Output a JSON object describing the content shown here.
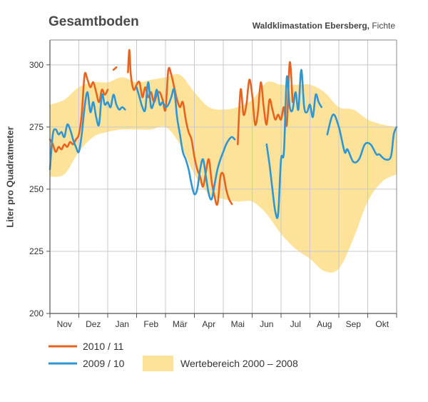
{
  "header": {
    "title": "Gesamtboden",
    "station_bold": "Waldklimastation Ebersberg,",
    "station_rest": " Fichte"
  },
  "chart_data": {
    "type": "line",
    "ylabel": "Liter pro Quadratmeter",
    "ylim": [
      200,
      310
    ],
    "yticks": [
      200,
      225,
      250,
      275,
      300
    ],
    "xlim": [
      0,
      12
    ],
    "months": [
      "Nov",
      "Dez",
      "Jan",
      "Feb",
      "Mär",
      "Apr",
      "Mai",
      "Jun",
      "Jul",
      "Aug",
      "Sep",
      "Okt"
    ],
    "grid": "vertical month dividers",
    "legend_placement": "bottom-left",
    "colors": {
      "series_2010": "#e8641e",
      "series_2009": "#2e96d3",
      "band": "#fde29a"
    },
    "band": {
      "name": "Wertebereich 2000 – 2008",
      "x": [
        0,
        0.5,
        1,
        1.5,
        2,
        2.5,
        3,
        3.5,
        4,
        4.5,
        5,
        5.5,
        6,
        6.5,
        7,
        7.5,
        8,
        8.5,
        9,
        9.5,
        10,
        10.5,
        11,
        11.5,
        12
      ],
      "upper": [
        284,
        286,
        291,
        293,
        293,
        295,
        293,
        294,
        295,
        296,
        289,
        283,
        282,
        283,
        286,
        293,
        292,
        292,
        292,
        289,
        283,
        282,
        278,
        276,
        275
      ],
      "lower": [
        255,
        256,
        265,
        271,
        273,
        274,
        274,
        274,
        275,
        268,
        256,
        248,
        246,
        245,
        245,
        240,
        232,
        226,
        222,
        217,
        218,
        230,
        245,
        253,
        256
      ]
    },
    "series": [
      {
        "name": "2010 / 11",
        "segments": [
          {
            "x": [
              0,
              0.1,
              0.2,
              0.3,
              0.4,
              0.5,
              0.6,
              0.7,
              0.8,
              0.9,
              1.0,
              1.1,
              1.2,
              1.3,
              1.4,
              1.5,
              1.6,
              1.7,
              1.8,
              1.9,
              2.0
            ],
            "y": [
              270,
              268,
              265,
              267,
              266,
              268,
              267,
              269,
              268,
              270,
              272,
              280,
              296,
              294,
              291,
              293,
              289,
              285,
              290,
              288,
              290
            ]
          },
          {
            "x": [
              2.2,
              2.3
            ],
            "y": [
              298,
              299
            ]
          },
          {
            "x": [
              2.7,
              2.75,
              2.8,
              2.9,
              3.0,
              3.1,
              3.2,
              3.3,
              3.4,
              3.5,
              3.6,
              3.7,
              3.8,
              3.9,
              4.0,
              4.1,
              4.2,
              4.3,
              4.4,
              4.5,
              4.6,
              4.7,
              4.8,
              4.9,
              5.0,
              5.1,
              5.2,
              5.3,
              5.4,
              5.5,
              5.6,
              5.7,
              5.8,
              5.9,
              6.0,
              6.1,
              6.2,
              6.3
            ],
            "y": [
              297,
              306,
              296,
              290,
              292,
              293,
              287,
              291,
              287,
              289,
              285,
              288,
              289,
              286,
              282,
              298,
              296,
              291,
              286,
              283,
              285,
              278,
              273,
              270,
              263,
              258,
              255,
              251,
              257,
              262,
              253,
              247,
              244,
              255,
              256,
              250,
              246,
              244
            ]
          },
          {
            "x": [
              6.5,
              6.6,
              6.7,
              6.8,
              6.9,
              7.0,
              7.1,
              7.2,
              7.3,
              7.4,
              7.5,
              7.6,
              7.7,
              7.8,
              7.9,
              8.0,
              8.1,
              8.2,
              8.3,
              8.4
            ],
            "y": [
              268,
              290,
              280,
              284,
              294,
              288,
              276,
              281,
              293,
              283,
              276,
              286,
              282,
              278,
              280,
              278,
              283,
              276,
              301,
              285
            ]
          }
        ]
      },
      {
        "name": "2009 / 10",
        "segments": [
          {
            "x": [
              0,
              0.1,
              0.2,
              0.3,
              0.4,
              0.5,
              0.6,
              0.7,
              0.8,
              0.9,
              1.0,
              1.1,
              1.2,
              1.3,
              1.4,
              1.5,
              1.6,
              1.7,
              1.8,
              1.9,
              2.0,
              2.1,
              2.2,
              2.3,
              2.4,
              2.5,
              2.6
            ],
            "y": [
              258,
              272,
              274,
              272,
              273,
              271,
              276,
              274,
              270,
              267,
              265,
              272,
              283,
              289,
              281,
              285,
              279,
              276,
              288,
              284,
              285,
              283,
              288,
              284,
              282,
              283,
              282
            ]
          },
          {
            "x": [
              3.0,
              3.1,
              3.2,
              3.3,
              3.4,
              3.5,
              3.6,
              3.7,
              3.8,
              3.9,
              4.0,
              4.1,
              4.2,
              4.3,
              4.4,
              4.5,
              4.6,
              4.7,
              4.8,
              4.9,
              5.0,
              5.1,
              5.2,
              5.3,
              5.4,
              5.5,
              5.6,
              5.7,
              5.8,
              5.9,
              6.0,
              6.1,
              6.2,
              6.3,
              6.4
            ],
            "y": [
              291,
              287,
              283,
              282,
              293,
              283,
              285,
              290,
              284,
              285,
              283,
              284,
              287,
              290,
              279,
              272,
              265,
              262,
              258,
              252,
              248,
              250,
              258,
              262,
              255,
              248,
              246,
              252,
              258,
              262,
              265,
              268,
              270,
              271,
              270
            ]
          },
          {
            "x": [
              7.5,
              7.6,
              7.7,
              7.8,
              7.9,
              8.0,
              8.1,
              8.2,
              8.3,
              8.4,
              8.5,
              8.6,
              8.7,
              8.8,
              8.9,
              9.0,
              9.1,
              9.2,
              9.3,
              9.4
            ],
            "y": [
              268,
              260,
              250,
              241,
              240,
              262,
              265,
              295,
              283,
              282,
              289,
              282,
              298,
              283,
              281,
              284,
              279,
              288,
              285,
              283
            ]
          },
          {
            "x": [
              9.6,
              9.8,
              10.0,
              10.2,
              10.3,
              10.5,
              10.7,
              10.9,
              11.1,
              11.3,
              11.4,
              11.6,
              11.8,
              11.9,
              12.0
            ],
            "y": [
              272,
              280,
              275,
              265,
              266,
              261,
              262,
              268,
              268,
              264,
              264,
              262,
              263,
              272,
              275
            ]
          }
        ]
      }
    ]
  },
  "legend": {
    "items": [
      {
        "label": "2010 / 11",
        "kind": "line",
        "color": "#e8641e"
      },
      {
        "label": "2009 / 10",
        "kind": "line",
        "color": "#2e96d3"
      },
      {
        "label": "Wertebereich 2000 – 2008",
        "kind": "band",
        "color": "#fde29a"
      }
    ]
  }
}
